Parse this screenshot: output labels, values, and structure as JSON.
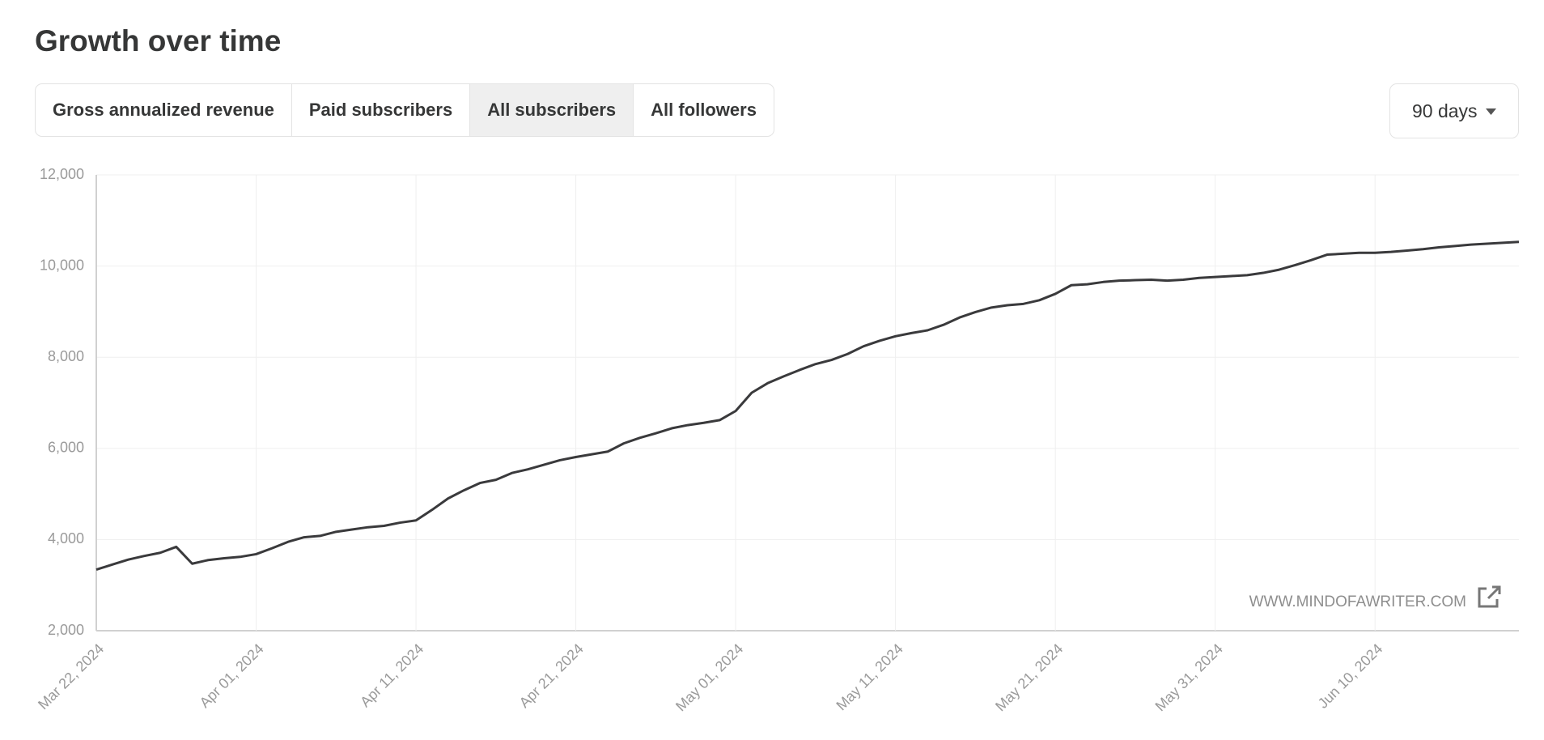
{
  "header": {
    "title": "Growth over time"
  },
  "tabs": [
    "Gross annualized revenue",
    "Paid subscribers",
    "All subscribers",
    "All followers"
  ],
  "active_tab": 2,
  "range_dropdown": "90 days",
  "watermark": "WWW.MINDOFAWRITER.COM",
  "chart_data": {
    "type": "line",
    "color": "#3a3a3c",
    "grid": true,
    "x": [
      "Mar 22, 2024",
      "Mar 23, 2024",
      "Mar 24, 2024",
      "Mar 25, 2024",
      "Mar 26, 2024",
      "Mar 27, 2024",
      "Mar 28, 2024",
      "Mar 29, 2024",
      "Mar 30, 2024",
      "Mar 31, 2024",
      "Apr 01, 2024",
      "Apr 02, 2024",
      "Apr 03, 2024",
      "Apr 04, 2024",
      "Apr 05, 2024",
      "Apr 06, 2024",
      "Apr 07, 2024",
      "Apr 08, 2024",
      "Apr 09, 2024",
      "Apr 10, 2024",
      "Apr 11, 2024",
      "Apr 12, 2024",
      "Apr 13, 2024",
      "Apr 14, 2024",
      "Apr 15, 2024",
      "Apr 16, 2024",
      "Apr 17, 2024",
      "Apr 18, 2024",
      "Apr 19, 2024",
      "Apr 20, 2024",
      "Apr 21, 2024",
      "Apr 22, 2024",
      "Apr 23, 2024",
      "Apr 24, 2024",
      "Apr 25, 2024",
      "Apr 26, 2024",
      "Apr 27, 2024",
      "Apr 28, 2024",
      "Apr 29, 2024",
      "Apr 30, 2024",
      "May 01, 2024",
      "May 02, 2024",
      "May 03, 2024",
      "May 04, 2024",
      "May 05, 2024",
      "May 06, 2024",
      "May 07, 2024",
      "May 08, 2024",
      "May 09, 2024",
      "May 10, 2024",
      "May 11, 2024",
      "May 12, 2024",
      "May 13, 2024",
      "May 14, 2024",
      "May 15, 2024",
      "May 16, 2024",
      "May 17, 2024",
      "May 18, 2024",
      "May 19, 2024",
      "May 20, 2024",
      "May 21, 2024",
      "May 22, 2024",
      "May 23, 2024",
      "May 24, 2024",
      "May 25, 2024",
      "May 26, 2024",
      "May 27, 2024",
      "May 28, 2024",
      "May 29, 2024",
      "May 30, 2024",
      "May 31, 2024",
      "Jun 01, 2024",
      "Jun 02, 2024",
      "Jun 03, 2024",
      "Jun 04, 2024",
      "Jun 05, 2024",
      "Jun 06, 2024",
      "Jun 07, 2024",
      "Jun 08, 2024",
      "Jun 09, 2024",
      "Jun 10, 2024",
      "Jun 11, 2024",
      "Jun 12, 2024",
      "Jun 13, 2024",
      "Jun 14, 2024",
      "Jun 15, 2024",
      "Jun 16, 2024",
      "Jun 17, 2024",
      "Jun 18, 2024",
      "Jun 19, 2024"
    ],
    "values": [
      3340,
      3450,
      3560,
      3640,
      3710,
      3840,
      3470,
      3550,
      3590,
      3620,
      3680,
      3810,
      3950,
      4050,
      4080,
      4170,
      4220,
      4270,
      4300,
      4370,
      4420,
      4650,
      4900,
      5080,
      5240,
      5310,
      5460,
      5540,
      5640,
      5740,
      5810,
      5870,
      5930,
      6110,
      6230,
      6330,
      6440,
      6510,
      6560,
      6620,
      6820,
      7220,
      7430,
      7580,
      7720,
      7850,
      7940,
      8070,
      8240,
      8360,
      8460,
      8530,
      8590,
      8710,
      8870,
      8990,
      9090,
      9140,
      9170,
      9250,
      9390,
      9580,
      9600,
      9650,
      9680,
      9690,
      9700,
      9680,
      9700,
      9740,
      9760,
      9780,
      9800,
      9850,
      9920,
      10020,
      10130,
      10250,
      10270,
      10290,
      10290,
      10310,
      10340,
      10370,
      10410,
      10440,
      10470,
      10490,
      10510,
      10530
    ],
    "xticks": [
      "Mar 22, 2024",
      "Apr 01, 2024",
      "Apr 11, 2024",
      "Apr 21, 2024",
      "May 01, 2024",
      "May 11, 2024",
      "May 21, 2024",
      "May 31, 2024",
      "Jun 10, 2024"
    ],
    "ylim": [
      2000,
      12000
    ],
    "yticks": [
      {
        "value": 2000,
        "label": "2,000"
      },
      {
        "value": 4000,
        "label": "4,000"
      },
      {
        "value": 6000,
        "label": "6,000"
      },
      {
        "value": 8000,
        "label": "8,000"
      },
      {
        "value": 10000,
        "label": "10,000"
      },
      {
        "value": 12000,
        "label": "12,000"
      }
    ]
  }
}
